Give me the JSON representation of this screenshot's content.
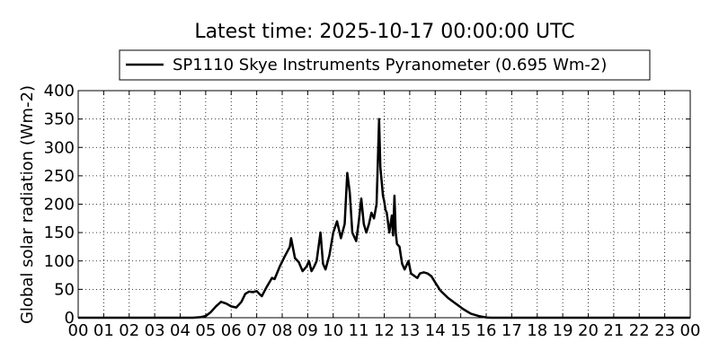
{
  "chart_data": {
    "type": "line",
    "title": "Latest time: 2025-10-17 00:00:00 UTC",
    "xlabel": "",
    "ylabel": "Global solar radiation (Wm-2)",
    "xlim": [
      0,
      24
    ],
    "ylim": [
      0,
      400
    ],
    "grid": true,
    "legend_position": "top-center",
    "x_tick_labels": [
      "00",
      "01",
      "02",
      "03",
      "04",
      "05",
      "06",
      "07",
      "08",
      "09",
      "10",
      "11",
      "12",
      "13",
      "14",
      "15",
      "16",
      "17",
      "18",
      "19",
      "20",
      "21",
      "22",
      "23",
      "00"
    ],
    "y_ticks": [
      0,
      50,
      100,
      150,
      200,
      250,
      300,
      350,
      400
    ],
    "series": [
      {
        "name": "SP1110 Skye Instruments Pyranometer (0.695 Wm-2)",
        "color": "#000000",
        "x": [
          0.0,
          4.5,
          4.8,
          5.0,
          5.2,
          5.4,
          5.6,
          5.8,
          6.0,
          6.2,
          6.4,
          6.55,
          6.7,
          6.85,
          7.0,
          7.1,
          7.2,
          7.4,
          7.6,
          7.7,
          7.9,
          8.1,
          8.3,
          8.35,
          8.5,
          8.65,
          8.8,
          8.95,
          9.05,
          9.15,
          9.25,
          9.35,
          9.5,
          9.6,
          9.7,
          9.85,
          10.0,
          10.15,
          10.3,
          10.45,
          10.55,
          10.65,
          10.75,
          10.9,
          11.0,
          11.1,
          11.2,
          11.3,
          11.4,
          11.5,
          11.6,
          11.7,
          11.8,
          11.85,
          11.9,
          11.95,
          12.0,
          12.05,
          12.1,
          12.2,
          12.3,
          12.35,
          12.4,
          12.45,
          12.5,
          12.6,
          12.7,
          12.8,
          12.95,
          13.05,
          13.2,
          13.3,
          13.4,
          13.55,
          13.7,
          13.85,
          14.0,
          14.2,
          14.5,
          14.8,
          15.1,
          15.4,
          15.7,
          16.0,
          16.2,
          16.4,
          24.0
        ],
        "y": [
          0,
          0,
          1,
          3,
          10,
          20,
          28,
          25,
          20,
          18,
          28,
          42,
          46,
          45,
          47,
          42,
          38,
          55,
          70,
          68,
          90,
          108,
          125,
          140,
          105,
          98,
          82,
          90,
          100,
          82,
          90,
          100,
          150,
          95,
          85,
          110,
          150,
          170,
          140,
          165,
          255,
          220,
          150,
          135,
          168,
          210,
          165,
          150,
          165,
          185,
          175,
          200,
          350,
          265,
          240,
          215,
          205,
          190,
          185,
          150,
          180,
          145,
          215,
          150,
          130,
          125,
          95,
          85,
          100,
          78,
          73,
          70,
          78,
          80,
          78,
          73,
          62,
          48,
          35,
          25,
          15,
          7,
          3,
          0.5,
          0,
          0,
          0
        ]
      }
    ]
  }
}
